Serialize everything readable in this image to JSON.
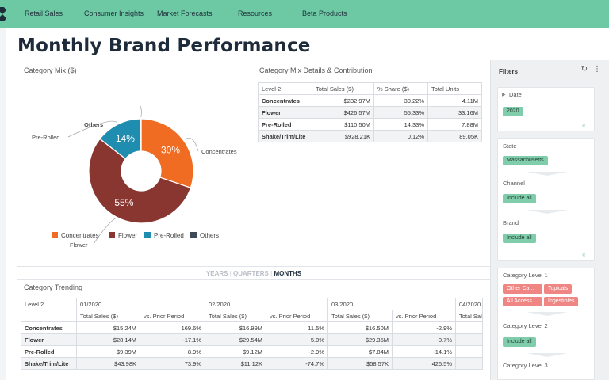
{
  "nav": {
    "items": [
      "Retail Sales",
      "Consumer Insights",
      "Market Forecasts",
      "Resources",
      "Beta Products"
    ]
  },
  "page": {
    "title": "Monthly Brand Performance"
  },
  "category_mix": {
    "title": "Category Mix ($)",
    "legend": [
      "Concentrates",
      "Flower",
      "Pre-Rolled",
      "Others"
    ]
  },
  "chart_data": {
    "type": "pie",
    "donut": true,
    "title": "Category Mix ($)",
    "categories": [
      "Concentrates",
      "Flower",
      "Pre-Rolled",
      "Others"
    ],
    "values": [
      30.22,
      55.33,
      14.33,
      0.12
    ],
    "slice_labels": [
      "30%",
      "55%",
      "14%",
      ""
    ],
    "colors": [
      "#ef6c22",
      "#8a3630",
      "#1e8db0",
      "#3d4a57"
    ],
    "legend_position": "bottom"
  },
  "mix_details": {
    "title": "Category Mix Details & Contribution",
    "columns": [
      "Level 2",
      "Total Sales ($)",
      "% Share ($)",
      "Total Units"
    ],
    "rows": [
      [
        "Concentrates",
        "$232.97M",
        "30.22%",
        "4.11M"
      ],
      [
        "Flower",
        "$426.57M",
        "55.33%",
        "33.16M"
      ],
      [
        "Pre-Rolled",
        "$110.50M",
        "14.33%",
        "7.88M"
      ],
      [
        "Shake/Trim/Lite",
        "$928.21K",
        "0.12%",
        "89.05K"
      ]
    ]
  },
  "period_tabs": {
    "years": "YEARS",
    "quarters": "QUARTERS",
    "months": "MONTHS",
    "separator": "|"
  },
  "trending": {
    "title": "Category Trending",
    "level_header": "Level 2",
    "periods": [
      "01/2020",
      "02/2020",
      "03/2020",
      "04/2020"
    ],
    "sub_headers": [
      "Total Sales ($)",
      "vs. Prior Period"
    ],
    "rows": [
      {
        "name": "Concentrates",
        "values": [
          "$15.24M",
          "169.6%",
          "$16.99M",
          "11.5%",
          "$16.50M",
          "-2.9%"
        ]
      },
      {
        "name": "Flower",
        "values": [
          "$28.14M",
          "-17.1%",
          "$29.54M",
          "5.0%",
          "$29.35M",
          "-0.7%"
        ]
      },
      {
        "name": "Pre-Rolled",
        "values": [
          "$9.39M",
          "8.9%",
          "$9.12M",
          "-2.9%",
          "$7.84M",
          "-14.1%"
        ]
      },
      {
        "name": "Shake/Trim/Lite",
        "values": [
          "$43.98K",
          "73.9%",
          "$11.12K",
          "-74.7%",
          "$58.57K",
          "426.5%"
        ]
      }
    ]
  },
  "filters": {
    "title": "Filters",
    "date": {
      "label": "Date",
      "value": "2020"
    },
    "state": {
      "label": "State",
      "value": "Massachusetts"
    },
    "channel": {
      "label": "Channel",
      "value": "Include all"
    },
    "brand": {
      "label": "Brand",
      "value": "Include all"
    },
    "category_level_1": {
      "label": "Category Level 1",
      "values": [
        "Other Ca...",
        "Topicals",
        "All Access...",
        "Ingestibles"
      ]
    },
    "category_level_2": {
      "label": "Category Level 2",
      "value": "Include all"
    },
    "category_level_3": {
      "label": "Category Level 3"
    }
  }
}
